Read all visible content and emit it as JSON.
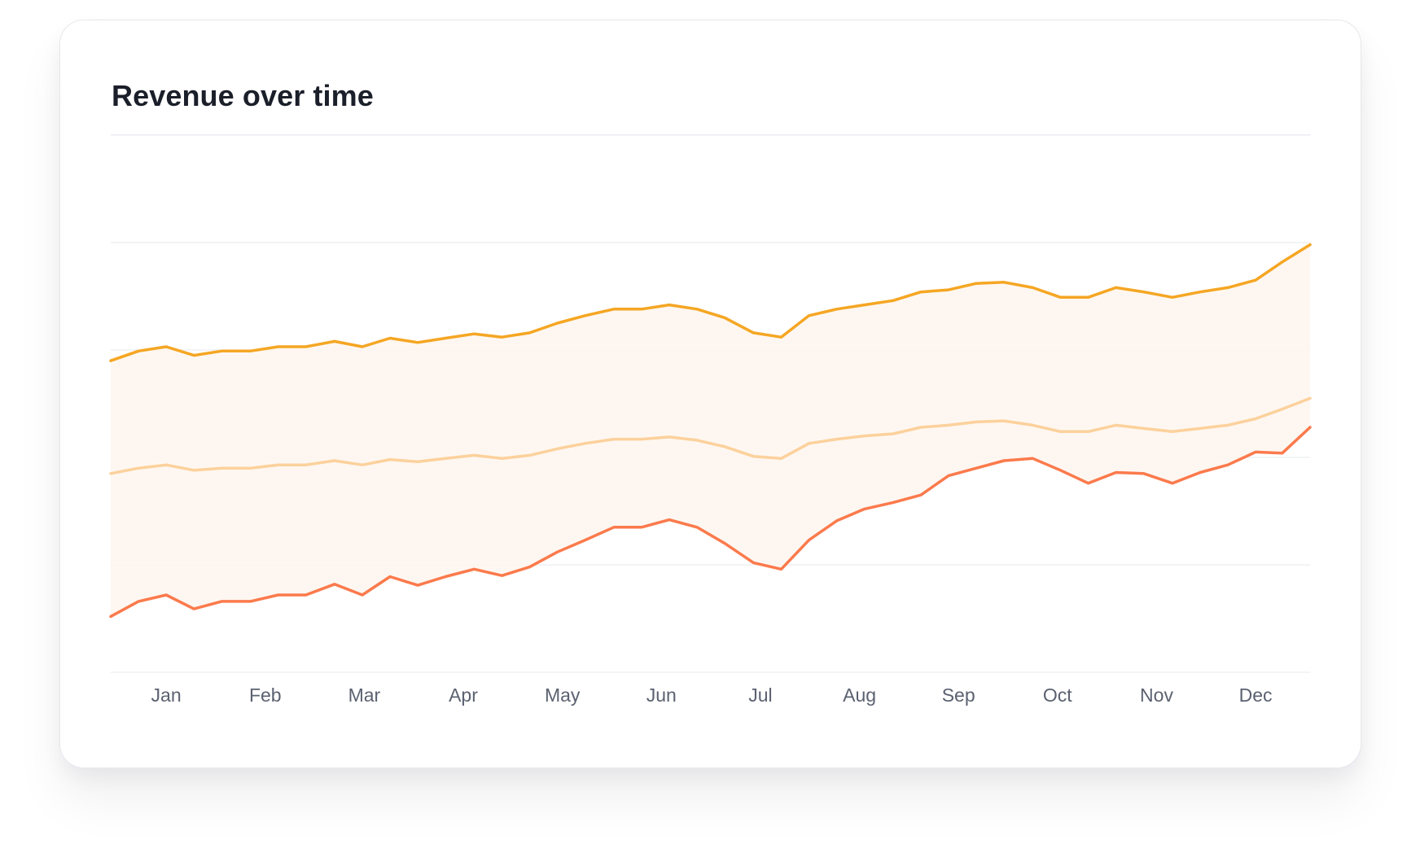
{
  "card": {
    "title": "Revenue over time"
  },
  "colors": {
    "series_1": "#f5a623",
    "series_2": "#fcd19c",
    "series_3": "#fb7a4c",
    "band_fill": "#fef6ef",
    "gridline": "#eceef1",
    "tick_text": "#5b6170"
  },
  "chart_data": {
    "type": "line",
    "title": "Revenue over time",
    "xlabel": "",
    "ylabel": "",
    "categories": [
      "Jan",
      "Feb",
      "Mar",
      "Apr",
      "May",
      "Jun",
      "Jul",
      "Aug",
      "Sep",
      "Oct",
      "Nov",
      "Dec"
    ],
    "x_range": [
      0.44,
      12.55
    ],
    "ylim": [
      0,
      5
    ],
    "grid": true,
    "legend": "none",
    "area_fill_between": [
      "series_1",
      "series_3"
    ],
    "series": [
      {
        "key": "series_1",
        "x": [
          0.44,
          0.72,
          1.0,
          1.28,
          1.56,
          1.85,
          2.13,
          2.41,
          2.7,
          2.98,
          3.26,
          3.54,
          3.82,
          4.11,
          4.39,
          4.67,
          4.95,
          5.23,
          5.52,
          5.8,
          6.08,
          6.36,
          6.64,
          6.93,
          7.21,
          7.49,
          7.77,
          8.05,
          8.34,
          8.62,
          8.9,
          9.18,
          9.46,
          9.75,
          10.03,
          10.31,
          10.59,
          10.87,
          11.16,
          11.44,
          11.72,
          12.0,
          12.27,
          12.55
        ],
        "values": [
          2.9,
          2.99,
          3.03,
          2.95,
          2.99,
          2.99,
          3.03,
          3.03,
          3.08,
          3.03,
          3.11,
          3.07,
          3.11,
          3.15,
          3.12,
          3.16,
          3.25,
          3.32,
          3.38,
          3.38,
          3.42,
          3.38,
          3.3,
          3.16,
          3.12,
          3.32,
          3.38,
          3.42,
          3.46,
          3.54,
          3.56,
          3.62,
          3.63,
          3.58,
          3.49,
          3.49,
          3.58,
          3.54,
          3.49,
          3.54,
          3.58,
          3.65,
          3.82,
          3.98
        ]
      },
      {
        "key": "series_2",
        "x": [
          0.44,
          0.72,
          1.0,
          1.28,
          1.56,
          1.85,
          2.13,
          2.41,
          2.7,
          2.98,
          3.26,
          3.54,
          3.82,
          4.11,
          4.39,
          4.67,
          4.95,
          5.23,
          5.52,
          5.8,
          6.08,
          6.36,
          6.64,
          6.93,
          7.21,
          7.49,
          7.77,
          8.05,
          8.34,
          8.62,
          8.9,
          9.18,
          9.46,
          9.75,
          10.03,
          10.31,
          10.59,
          10.87,
          11.16,
          11.44,
          11.72,
          12.0,
          12.27,
          12.55
        ],
        "values": [
          1.85,
          1.9,
          1.93,
          1.88,
          1.9,
          1.9,
          1.93,
          1.93,
          1.97,
          1.93,
          1.98,
          1.96,
          1.99,
          2.02,
          1.99,
          2.02,
          2.08,
          2.13,
          2.17,
          2.17,
          2.19,
          2.16,
          2.1,
          2.01,
          1.99,
          2.13,
          2.17,
          2.2,
          2.22,
          2.28,
          2.3,
          2.33,
          2.34,
          2.3,
          2.24,
          2.24,
          2.3,
          2.27,
          2.24,
          2.27,
          2.3,
          2.36,
          2.45,
          2.55
        ]
      },
      {
        "key": "series_3",
        "x": [
          0.44,
          0.72,
          1.0,
          1.28,
          1.56,
          1.85,
          2.13,
          2.41,
          2.7,
          2.98,
          3.26,
          3.54,
          3.82,
          4.11,
          4.39,
          4.67,
          4.95,
          5.23,
          5.52,
          5.8,
          6.08,
          6.36,
          6.64,
          6.93,
          7.21,
          7.49,
          7.77,
          8.05,
          8.34,
          8.62,
          8.9,
          9.18,
          9.46,
          9.75,
          10.03,
          10.31,
          10.59,
          10.87,
          11.16,
          11.44,
          11.72,
          12.0,
          12.27,
          12.55
        ],
        "values": [
          0.52,
          0.66,
          0.72,
          0.59,
          0.66,
          0.66,
          0.72,
          0.72,
          0.82,
          0.72,
          0.89,
          0.81,
          0.89,
          0.96,
          0.9,
          0.98,
          1.12,
          1.23,
          1.35,
          1.35,
          1.42,
          1.35,
          1.2,
          1.02,
          0.96,
          1.23,
          1.41,
          1.52,
          1.58,
          1.65,
          1.83,
          1.9,
          1.97,
          1.99,
          1.88,
          1.76,
          1.86,
          1.85,
          1.76,
          1.86,
          1.93,
          2.05,
          2.04,
          2.28
        ]
      }
    ]
  }
}
